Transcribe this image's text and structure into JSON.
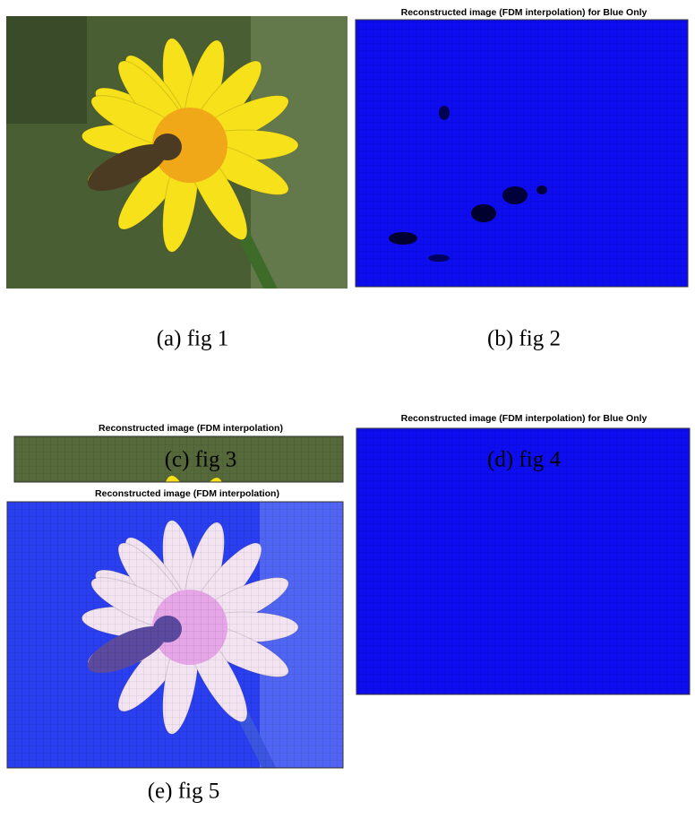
{
  "figures": [
    {
      "label": "(a) fig 1"
    },
    {
      "title": "Reconstructed image (FDM interpolation) for Blue Only",
      "label": "(b) fig 2"
    },
    {
      "title": "Reconstructed image (FDM interpolation)",
      "label": "(c) fig 3"
    },
    {
      "title": "Reconstructed image (FDM interpolation) for Blue Only",
      "label": "(d) fig 4"
    },
    {
      "title": "Reconstructed image (FDM interpolation)",
      "label": "(e) fig 5"
    }
  ]
}
